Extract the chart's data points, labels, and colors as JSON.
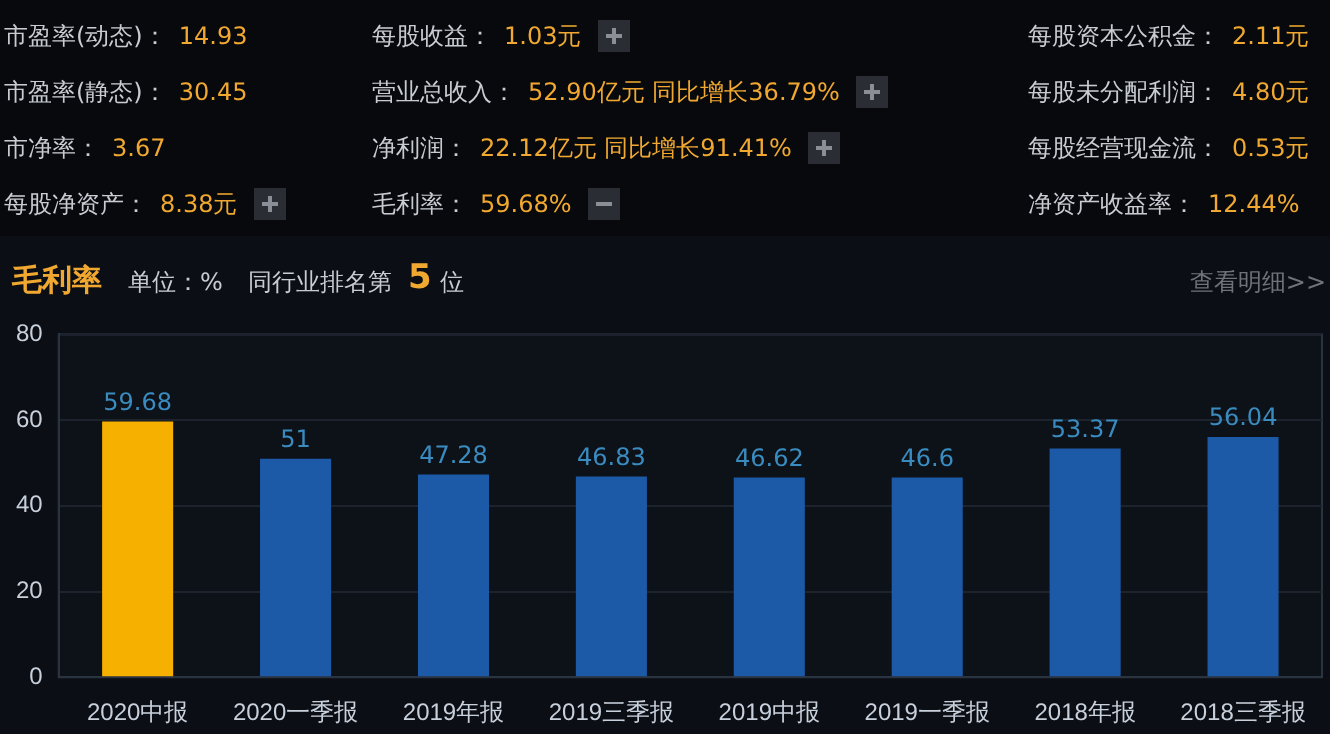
{
  "chart_data": [
    {
      "type": "other",
      "annotations": [
        "市盈率(动态)：",
        "14.93",
        "每股收益：",
        "1.03元",
        "每股资本公积金：",
        "2.11元",
        "市盈率(静态)：",
        "30.45",
        "营业总收入：",
        "52.90亿元 同比增长36.79%",
        "每股未分配利润：",
        "4.80元",
        "市净率：",
        "3.67",
        "净利润：",
        "22.12亿元 同比增长91.41%",
        "每股经营现金流：",
        "0.53元",
        "每股净资产：",
        "8.38元",
        "毛利率：",
        "59.68%",
        "净资产收益率：",
        "12.44%"
      ]
    },
    {
      "type": "bar",
      "title": "毛利率",
      "annotations": [
        "单位：%",
        "同行业排名第",
        "5",
        "位",
        "查看明细>>"
      ],
      "categories": [
        "2020中报",
        "2020一季报",
        "2019年报",
        "2019三季报",
        "2019中报",
        "2019一季报",
        "2018年报",
        "2018三季报"
      ],
      "values": [
        59.68,
        51,
        47.28,
        46.83,
        46.62,
        46.6,
        53.37,
        56.04
      ],
      "colors": [
        "#f5b000",
        "#1c5aa8",
        "#1c5aa8",
        "#1c5aa8",
        "#1c5aa8",
        "#1c5aa8",
        "#1c5aa8",
        "#1c5aa8"
      ],
      "ylim": [
        0,
        80
      ],
      "yticks": [
        0,
        20,
        40,
        60,
        80
      ],
      "grid": "y",
      "legend": false,
      "data_labels": true
    }
  ]
}
